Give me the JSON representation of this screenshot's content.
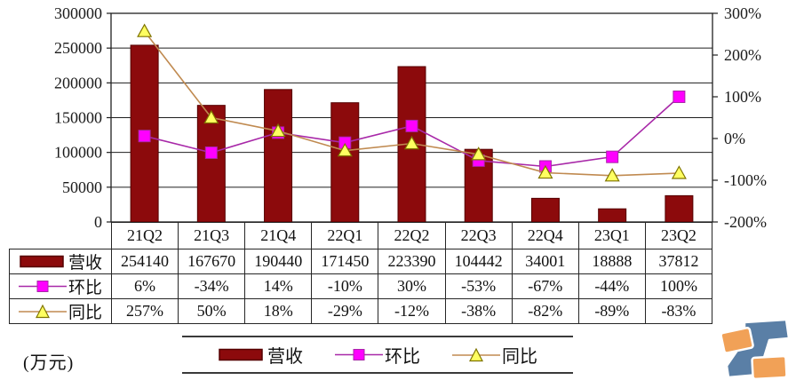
{
  "unit_label": "(万元)",
  "colors": {
    "bar_fill": "#8c0a0c",
    "bar_stroke": "#550000",
    "huanbi_line": "#a828a8",
    "huanbi_marker": "#ff00ff",
    "tongbi_line": "#c08a50",
    "tongbi_marker_fill": "#ffff60",
    "tongbi_marker_stroke": "#7f7400",
    "axis": "#1f1f1f",
    "logo_blue": "#5a7fa6",
    "logo_orange": "#f1a157"
  },
  "chart_data": {
    "type": "bar+line combo",
    "categories": [
      "21Q2",
      "21Q3",
      "21Q4",
      "22Q1",
      "22Q2",
      "22Q3",
      "22Q4",
      "23Q1",
      "23Q2"
    ],
    "series": [
      {
        "name": "营收",
        "type": "bar",
        "axis": "left",
        "marker": "rect",
        "values": [
          254140,
          167670,
          190440,
          171450,
          223390,
          104442,
          34001,
          18888,
          37812
        ]
      },
      {
        "name": "环比",
        "type": "line",
        "axis": "right",
        "marker": "square",
        "unit": "%",
        "values": [
          6,
          -34,
          14,
          -10,
          30,
          -53,
          -67,
          -44,
          100
        ]
      },
      {
        "name": "同比",
        "type": "line",
        "axis": "right",
        "marker": "triangle",
        "unit": "%",
        "values": [
          257,
          50,
          18,
          -29,
          -12,
          -38,
          -82,
          -89,
          -83
        ]
      }
    ],
    "left_axis": {
      "min": 0,
      "max": 300000,
      "tick_step": 50000,
      "tick_labels": [
        "300000",
        "250000",
        "200000",
        "150000",
        "100000",
        "50000",
        "0"
      ]
    },
    "right_axis": {
      "min": -200,
      "max": 300,
      "tick_step": 100,
      "tick_labels": [
        "300%",
        "200%",
        "100%",
        "0%",
        "-100%",
        "-200%"
      ]
    },
    "grid": "horizontal gridlines at every 50000 of left axis",
    "legend_position": "bottom",
    "unit": "万元"
  },
  "table": {
    "quarter_row": [
      "21Q2",
      "21Q3",
      "21Q4",
      "22Q1",
      "22Q2",
      "22Q3",
      "22Q4",
      "23Q1",
      "23Q2"
    ],
    "rows": [
      {
        "header": "营收",
        "cells": [
          "254140",
          "167670",
          "190440",
          "171450",
          "223390",
          "104442",
          "34001",
          "18888",
          "37812"
        ]
      },
      {
        "header": "环比",
        "cells": [
          "6%",
          "-34%",
          "14%",
          "-10%",
          "30%",
          "-53%",
          "-67%",
          "-44%",
          "100%"
        ]
      },
      {
        "header": "同比",
        "cells": [
          "257%",
          "50%",
          "18%",
          "-29%",
          "-12%",
          "-38%",
          "-82%",
          "-89%",
          "-83%"
        ]
      }
    ]
  },
  "legend": {
    "items": [
      "营收",
      "环比",
      "同比"
    ]
  }
}
